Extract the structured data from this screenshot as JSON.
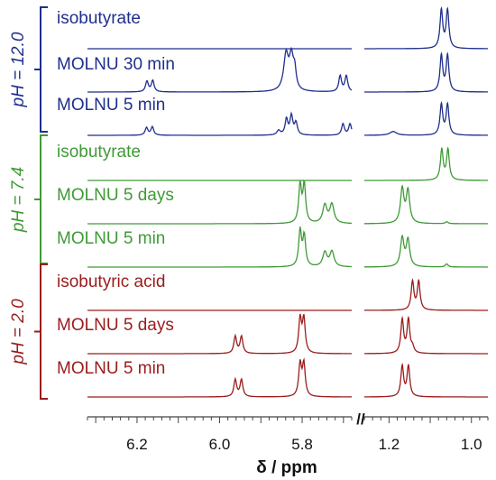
{
  "chart_data": {
    "type": "line",
    "title": "",
    "xlabel": "δ / ppm",
    "axis_break": "//",
    "x_segments": [
      {
        "range": [
          6.32,
          5.68
        ],
        "ticks": [
          "6.2",
          "6.0",
          "5.8"
        ],
        "tick_values": [
          6.2,
          6.0,
          5.8
        ]
      },
      {
        "range": [
          1.26,
          0.96
        ],
        "ticks": [
          "1.2",
          "1.0"
        ],
        "tick_values": [
          1.2,
          1.0
        ]
      }
    ],
    "groups": [
      {
        "label": "pH = 12.0",
        "color": "#1f2f8c"
      },
      {
        "label": "pH = 7.4",
        "color": "#3f9a36"
      },
      {
        "label": "pH = 2.0",
        "color": "#9a1c1c"
      }
    ],
    "series": [
      {
        "name": "isobutyrate",
        "group": 0,
        "peaks": [
          {
            "ppm": 1.073,
            "h": 1.0,
            "w": 0.004
          },
          {
            "ppm": 1.058,
            "h": 1.0,
            "w": 0.004
          }
        ]
      },
      {
        "name": "MOLNU 30 min",
        "group": 0,
        "peaks": [
          {
            "ppm": 6.176,
            "h": 0.28,
            "w": 0.004
          },
          {
            "ppm": 6.162,
            "h": 0.3,
            "w": 0.004
          },
          {
            "ppm": 5.839,
            "h": 0.95,
            "w": 0.007
          },
          {
            "ppm": 5.826,
            "h": 0.85,
            "w": 0.006
          },
          {
            "ppm": 5.818,
            "h": 0.45,
            "w": 0.004
          },
          {
            "ppm": 5.708,
            "h": 0.42,
            "w": 0.004
          },
          {
            "ppm": 5.693,
            "h": 0.42,
            "w": 0.004
          },
          {
            "ppm": 1.073,
            "h": 0.95,
            "w": 0.004
          },
          {
            "ppm": 1.058,
            "h": 0.95,
            "w": 0.004
          }
        ]
      },
      {
        "name": "MOLNU 5 min",
        "group": 0,
        "peaks": [
          {
            "ppm": 6.177,
            "h": 0.2,
            "w": 0.004
          },
          {
            "ppm": 6.163,
            "h": 0.22,
            "w": 0.004
          },
          {
            "ppm": 5.857,
            "h": 0.12,
            "w": 0.005
          },
          {
            "ppm": 5.838,
            "h": 0.42,
            "w": 0.004
          },
          {
            "ppm": 5.826,
            "h": 0.5,
            "w": 0.004
          },
          {
            "ppm": 5.815,
            "h": 0.32,
            "w": 0.004
          },
          {
            "ppm": 5.701,
            "h": 0.3,
            "w": 0.004
          },
          {
            "ppm": 5.684,
            "h": 0.3,
            "w": 0.004
          },
          {
            "ppm": 1.19,
            "h": 0.1,
            "w": 0.01
          },
          {
            "ppm": 1.073,
            "h": 0.8,
            "w": 0.004
          },
          {
            "ppm": 1.058,
            "h": 0.8,
            "w": 0.004
          }
        ]
      },
      {
        "name": "isobutyrate",
        "group": 1,
        "peaks": [
          {
            "ppm": 1.072,
            "h": 0.8,
            "w": 0.004
          },
          {
            "ppm": 1.057,
            "h": 0.8,
            "w": 0.004
          }
        ]
      },
      {
        "name": "MOLNU 5 days",
        "group": 1,
        "peaks": [
          {
            "ppm": 5.805,
            "h": 1.0,
            "w": 0.004
          },
          {
            "ppm": 5.795,
            "h": 1.0,
            "w": 0.004
          },
          {
            "ppm": 5.745,
            "h": 0.48,
            "w": 0.006
          },
          {
            "ppm": 5.728,
            "h": 0.5,
            "w": 0.006
          },
          {
            "ppm": 1.168,
            "h": 0.9,
            "w": 0.005
          },
          {
            "ppm": 1.154,
            "h": 0.85,
            "w": 0.005
          },
          {
            "ppm": 1.06,
            "h": 0.05,
            "w": 0.004
          }
        ]
      },
      {
        "name": "MOLNU 5 min",
        "group": 1,
        "peaks": [
          {
            "ppm": 5.805,
            "h": 0.95,
            "w": 0.004
          },
          {
            "ppm": 5.795,
            "h": 0.8,
            "w": 0.004
          },
          {
            "ppm": 5.745,
            "h": 0.38,
            "w": 0.006
          },
          {
            "ppm": 5.728,
            "h": 0.4,
            "w": 0.006
          },
          {
            "ppm": 1.168,
            "h": 0.75,
            "w": 0.005
          },
          {
            "ppm": 1.154,
            "h": 0.7,
            "w": 0.005
          },
          {
            "ppm": 1.06,
            "h": 0.08,
            "w": 0.004
          }
        ]
      },
      {
        "name": "isobutyric acid",
        "group": 2,
        "peaks": [
          {
            "ppm": 1.143,
            "h": 0.75,
            "w": 0.004
          },
          {
            "ppm": 1.128,
            "h": 0.75,
            "w": 0.004
          }
        ]
      },
      {
        "name": "MOLNU 5 days",
        "group": 2,
        "peaks": [
          {
            "ppm": 5.962,
            "h": 0.45,
            "w": 0.004
          },
          {
            "ppm": 5.947,
            "h": 0.45,
            "w": 0.004
          },
          {
            "ppm": 5.805,
            "h": 0.9,
            "w": 0.004
          },
          {
            "ppm": 5.796,
            "h": 0.9,
            "w": 0.004
          },
          {
            "ppm": 1.168,
            "h": 0.88,
            "w": 0.004
          },
          {
            "ppm": 1.153,
            "h": 0.88,
            "w": 0.004
          },
          {
            "ppm": 1.143,
            "h": 0.15,
            "w": 0.004
          }
        ]
      },
      {
        "name": "MOLNU 5 min",
        "group": 2,
        "peaks": [
          {
            "ppm": 5.962,
            "h": 0.45,
            "w": 0.004
          },
          {
            "ppm": 5.947,
            "h": 0.45,
            "w": 0.004
          },
          {
            "ppm": 5.805,
            "h": 0.85,
            "w": 0.004
          },
          {
            "ppm": 5.796,
            "h": 0.85,
            "w": 0.004
          },
          {
            "ppm": 1.168,
            "h": 0.8,
            "w": 0.004
          },
          {
            "ppm": 1.153,
            "h": 0.8,
            "w": 0.004
          }
        ]
      }
    ],
    "legend": "none",
    "grid": false
  }
}
